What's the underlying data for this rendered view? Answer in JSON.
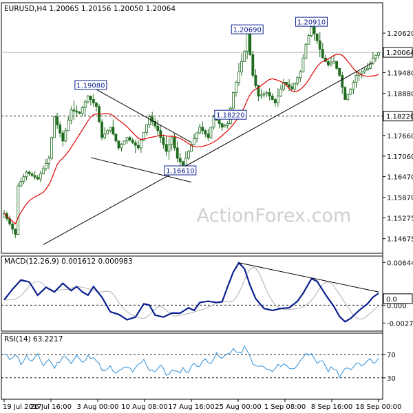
{
  "chart_data": [
    {
      "type": "candlestick",
      "header": "EURUSD,H4  1.20065 1.20156 1.20050 1.20064",
      "ylim": [
        1.1445,
        1.213
      ],
      "yticks": [
        {
          "value": 1.2062,
          "label": "1.20620"
        },
        {
          "value": 1.1948,
          "label": "1.19480"
        },
        {
          "value": 1.1888,
          "label": "1.18880"
        },
        {
          "value": 1.1766,
          "label": "1.17660"
        },
        {
          "value": 1.1706,
          "label": "1.17060"
        },
        {
          "value": 1.1647,
          "label": "1.16470"
        },
        {
          "value": 1.1587,
          "label": "1.15870"
        },
        {
          "value": 1.15275,
          "label": "1.15275"
        },
        {
          "value": 1.14675,
          "label": "1.14675"
        }
      ],
      "price_labels": [
        {
          "value": 1.20064,
          "label": "1.20064"
        },
        {
          "value": 1.1822,
          "label": "1.18220"
        }
      ],
      "annotations": [
        {
          "text": "1.19080",
          "value": 1.1908,
          "index": 31
        },
        {
          "text": "1.16610",
          "value": 1.1661,
          "index": 63
        },
        {
          "text": "1.18220",
          "value": 1.1822,
          "index": 81
        },
        {
          "text": "1.20690",
          "value": 1.2069,
          "index": 87
        },
        {
          "text": "1.20910",
          "value": 1.2091,
          "index": 110
        }
      ],
      "trendlines": [
        {
          "from": [
            14,
            1.145
          ],
          "to": [
            132,
            1.1977
          ]
        },
        {
          "from": [
            31,
            1.1908
          ],
          "to": [
            67,
            1.1746
          ]
        },
        {
          "from": [
            31,
            1.1702
          ],
          "to": [
            67,
            1.1631
          ]
        }
      ],
      "watermark": "ActionForex.com",
      "anchors": [
        [
          0,
          1.154
        ],
        [
          2,
          1.151
        ],
        [
          4,
          1.148
        ],
        [
          5,
          1.162
        ],
        [
          8,
          1.166
        ],
        [
          12,
          1.164
        ],
        [
          16,
          1.17
        ],
        [
          18,
          1.182
        ],
        [
          21,
          1.175
        ],
        [
          24,
          1.184
        ],
        [
          27,
          1.183
        ],
        [
          30,
          1.188
        ],
        [
          33,
          1.185
        ],
        [
          35,
          1.176
        ],
        [
          38,
          1.179
        ],
        [
          41,
          1.173
        ],
        [
          44,
          1.176
        ],
        [
          48,
          1.173
        ],
        [
          52,
          1.182
        ],
        [
          55,
          1.178
        ],
        [
          58,
          1.172
        ],
        [
          60,
          1.176
        ],
        [
          62,
          1.17
        ],
        [
          64,
          1.168
        ],
        [
          67,
          1.174
        ],
        [
          70,
          1.179
        ],
        [
          73,
          1.176
        ],
        [
          75,
          1.182
        ],
        [
          78,
          1.179
        ],
        [
          80,
          1.18
        ],
        [
          82,
          1.189
        ],
        [
          84,
          1.195
        ],
        [
          86,
          1.201
        ],
        [
          87,
          1.206
        ],
        [
          89,
          1.194
        ],
        [
          91,
          1.188
        ],
        [
          94,
          1.189
        ],
        [
          97,
          1.186
        ],
        [
          100,
          1.192
        ],
        [
          103,
          1.19
        ],
        [
          106,
          1.195
        ],
        [
          108,
          1.203
        ],
        [
          110,
          1.208
        ],
        [
          112,
          1.204
        ],
        [
          114,
          1.199
        ],
        [
          116,
          1.197
        ],
        [
          118,
          1.198
        ],
        [
          120,
          1.194
        ],
        [
          122,
          1.187
        ],
        [
          124,
          1.19
        ],
        [
          126,
          1.194
        ],
        [
          128,
          1.195
        ],
        [
          130,
          1.196
        ],
        [
          132,
          1.199
        ],
        [
          134,
          1.2006
        ]
      ]
    },
    {
      "type": "line",
      "header": "MACD(12,26,9) 0.001612 0.000983",
      "ylim": [
        -0.0035,
        0.007
      ],
      "yticks": [
        {
          "value": 0.006445,
          "label": "0.006445"
        },
        {
          "value": 0.0,
          "label": "0.000"
        },
        {
          "value": -0.0027,
          "label": "-0.0027"
        }
      ],
      "price_labels": [
        {
          "value": 0.000983,
          "label": "0.0"
        }
      ],
      "anchors": [
        [
          0,
          0.0008
        ],
        [
          3,
          0.0024
        ],
        [
          6,
          0.0038
        ],
        [
          9,
          0.0035
        ],
        [
          12,
          0.0015
        ],
        [
          15,
          0.0027
        ],
        [
          18,
          0.002
        ],
        [
          21,
          0.0033
        ],
        [
          24,
          0.0022
        ],
        [
          26,
          0.0028
        ],
        [
          28,
          0.002
        ],
        [
          30,
          0.0015
        ],
        [
          32,
          0.0028
        ],
        [
          35,
          0.0012
        ],
        [
          38,
          -0.001
        ],
        [
          41,
          -0.0014
        ],
        [
          44,
          -0.0022
        ],
        [
          47,
          -0.0018
        ],
        [
          50,
          0.0002
        ],
        [
          52,
          0.0
        ],
        [
          54,
          -0.0015
        ],
        [
          57,
          -0.0018
        ],
        [
          60,
          -0.0012
        ],
        [
          63,
          -0.0012
        ],
        [
          66,
          -0.0004
        ],
        [
          68,
          -0.0008
        ],
        [
          70,
          0.0004
        ],
        [
          73,
          0.0006
        ],
        [
          76,
          0.0004
        ],
        [
          78,
          0.0005
        ],
        [
          80,
          0.0028
        ],
        [
          82,
          0.005
        ],
        [
          84,
          0.0064
        ],
        [
          86,
          0.0055
        ],
        [
          88,
          0.003
        ],
        [
          90,
          0.001
        ],
        [
          93,
          -0.0005
        ],
        [
          96,
          -0.0008
        ],
        [
          99,
          -0.0005
        ],
        [
          102,
          -0.0004
        ],
        [
          105,
          0.0006
        ],
        [
          107,
          0.0018
        ],
        [
          110,
          0.004
        ],
        [
          112,
          0.0036
        ],
        [
          115,
          0.0016
        ],
        [
          118,
          -0.0002
        ],
        [
          120,
          -0.0017
        ],
        [
          122,
          -0.0025
        ],
        [
          124,
          -0.002
        ],
        [
          127,
          -0.0008
        ],
        [
          130,
          0.0002
        ],
        [
          132,
          0.0012
        ],
        [
          134,
          0.0018
        ]
      ],
      "signal_lag": 3,
      "trendline": {
        "from": [
          84,
          0.0064
        ],
        "to": [
          134,
          0.002
        ]
      }
    },
    {
      "type": "line",
      "header": "RSI(14) 63.2217",
      "ylim": [
        0,
        100
      ],
      "yticks": [
        {
          "value": 70,
          "label": "70"
        },
        {
          "value": 30,
          "label": "30"
        }
      ],
      "anchors": [
        [
          0,
          70
        ],
        [
          2,
          63
        ],
        [
          4,
          72
        ],
        [
          6,
          55
        ],
        [
          8,
          66
        ],
        [
          10,
          58
        ],
        [
          12,
          68
        ],
        [
          14,
          52
        ],
        [
          16,
          62
        ],
        [
          18,
          48
        ],
        [
          20,
          60
        ],
        [
          22,
          70
        ],
        [
          24,
          55
        ],
        [
          26,
          68
        ],
        [
          28,
          55
        ],
        [
          30,
          66
        ],
        [
          32,
          68
        ],
        [
          34,
          52
        ],
        [
          36,
          40
        ],
        [
          38,
          48
        ],
        [
          40,
          36
        ],
        [
          42,
          44
        ],
        [
          44,
          50
        ],
        [
          46,
          38
        ],
        [
          48,
          52
        ],
        [
          50,
          60
        ],
        [
          52,
          45
        ],
        [
          54,
          42
        ],
        [
          56,
          52
        ],
        [
          58,
          35
        ],
        [
          60,
          42
        ],
        [
          62,
          38
        ],
        [
          64,
          46
        ],
        [
          66,
          40
        ],
        [
          68,
          56
        ],
        [
          70,
          50
        ],
        [
          72,
          62
        ],
        [
          74,
          58
        ],
        [
          76,
          70
        ],
        [
          78,
          62
        ],
        [
          80,
          72
        ],
        [
          82,
          80
        ],
        [
          84,
          70
        ],
        [
          86,
          82
        ],
        [
          88,
          66
        ],
        [
          90,
          48
        ],
        [
          92,
          50
        ],
        [
          94,
          45
        ],
        [
          96,
          40
        ],
        [
          98,
          50
        ],
        [
          100,
          55
        ],
        [
          102,
          46
        ],
        [
          104,
          48
        ],
        [
          106,
          58
        ],
        [
          108,
          76
        ],
        [
          110,
          68
        ],
        [
          112,
          52
        ],
        [
          114,
          60
        ],
        [
          116,
          42
        ],
        [
          118,
          48
        ],
        [
          120,
          35
        ],
        [
          122,
          45
        ],
        [
          124,
          42
        ],
        [
          126,
          58
        ],
        [
          128,
          52
        ],
        [
          130,
          62
        ],
        [
          132,
          58
        ],
        [
          134,
          63
        ]
      ]
    }
  ],
  "x_axis": {
    "ticks": [
      {
        "index": 0,
        "label": "19 Jul 2017"
      },
      {
        "index": 18,
        "label": "26 Jul 16:00"
      },
      {
        "index": 36,
        "label": "3 Aug 00:00"
      },
      {
        "index": 54,
        "label": "10 Aug 08:00"
      },
      {
        "index": 72,
        "label": "17 Aug 16:00"
      },
      {
        "index": 90,
        "label": "25 Aug 00:00"
      },
      {
        "index": 108,
        "label": "1 Sep 08:00"
      },
      {
        "index": 126,
        "label": "8 Sep 16:00"
      },
      {
        "index": 144,
        "label": "18 Sep 00:00"
      }
    ]
  },
  "colors": {
    "candle": "#1e6b1e",
    "ma": "#e00000",
    "trendline": "#000000",
    "macd": "#0b1f8f",
    "signal": "#b0b0b0",
    "rsi": "#2f8fd8",
    "grid": "#b8b8b8",
    "annotation_text": "#0b1f8f",
    "annotation_border": "#0b1f8f",
    "watermark": "#cfcfcf",
    "label_bg": "#ffffff"
  }
}
